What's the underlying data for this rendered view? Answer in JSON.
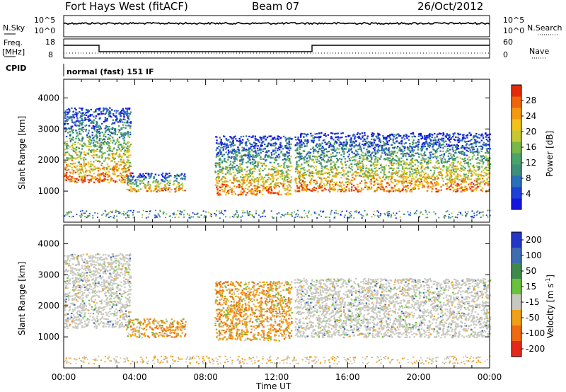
{
  "header": {
    "station": "Fort Hays West (fitACF)",
    "beam": "Beam 07",
    "date": "26/Oct/2012"
  },
  "noise_panel": {
    "left_label": "N.Sky",
    "right_label": "N.Search",
    "left_ticks": [
      "10^5",
      "10^0"
    ],
    "right_ticks": [
      "10^5",
      "10^0"
    ]
  },
  "freq_panel": {
    "left_label_1": "Freq.",
    "left_label_2": "[MHz]",
    "right_label": "Nave",
    "left_ticks": [
      "18",
      "8"
    ],
    "right_ticks": [
      "60",
      "0"
    ]
  },
  "cpid": {
    "label": "CPID",
    "value": "normal (fast) 151 IF"
  },
  "chart_data": [
    {
      "type": "heatmap",
      "panel": "power",
      "ylabel": "Slant Range [km]",
      "xlabel": "",
      "xlim": [
        "00:00",
        "24:00"
      ],
      "ylim": [
        0,
        4600
      ],
      "yticks": [
        1000,
        2000,
        3000,
        4000
      ],
      "colorbar": {
        "label": "Power [dB]",
        "ticks": [
          4,
          8,
          12,
          16,
          20,
          24,
          28
        ],
        "colors": [
          "#1515e0",
          "#1d40d8",
          "#2a6fb8",
          "#3f8f7a",
          "#4aa36a",
          "#78b84a",
          "#c6c833",
          "#f0c21a",
          "#f49a10",
          "#f0640c",
          "#e62a08"
        ]
      },
      "regions": [
        {
          "start": "00:00",
          "end": "03:45",
          "range_low": 1300,
          "range_high": 3700,
          "power_peak_db": 28
        },
        {
          "start": "03:30",
          "end": "06:50",
          "range_low": 1000,
          "range_high": 1600,
          "power_peak_db": 24
        },
        {
          "start": "08:30",
          "end": "12:50",
          "range_low": 900,
          "range_high": 2800,
          "power_peak_db": 24
        },
        {
          "start": "13:00",
          "end": "24:00",
          "range_low": 1000,
          "range_high": 2900,
          "power_peak_db": 30
        }
      ]
    },
    {
      "type": "heatmap",
      "panel": "velocity",
      "ylabel": "Slant Range [km]",
      "xlabel": "Time UT",
      "xlim": [
        "00:00",
        "24:00"
      ],
      "xticks": [
        "00:00",
        "04:00",
        "08:00",
        "12:00",
        "16:00",
        "20:00",
        "00:00"
      ],
      "ylim": [
        0,
        4600
      ],
      "yticks": [
        1000,
        2000,
        3000,
        4000
      ],
      "colorbar": {
        "label_main": "Velocity [m s",
        "label_sup": "-1",
        "label_end": "]",
        "ticks": [
          200,
          100,
          50,
          15,
          -15,
          -50,
          -100,
          -200
        ],
        "colors": [
          "#2436c8",
          "#3e6cb0",
          "#3f8a4a",
          "#6ac23c",
          "#c8c8c0",
          "#f0a018",
          "#ef6a10",
          "#e6281a"
        ]
      },
      "regions": [
        {
          "start": "00:00",
          "end": "03:45",
          "range_low": 1300,
          "range_high": 3700,
          "velocity": "near zero"
        },
        {
          "start": "03:30",
          "end": "06:50",
          "range_low": 1000,
          "range_high": 1600,
          "velocity": "-50 to -100"
        },
        {
          "start": "08:30",
          "end": "12:50",
          "range_low": 900,
          "range_high": 2800,
          "velocity": "-50 to -100"
        },
        {
          "start": "13:00",
          "end": "24:00",
          "range_low": 1000,
          "range_high": 2900,
          "velocity": "near zero"
        }
      ]
    }
  ]
}
